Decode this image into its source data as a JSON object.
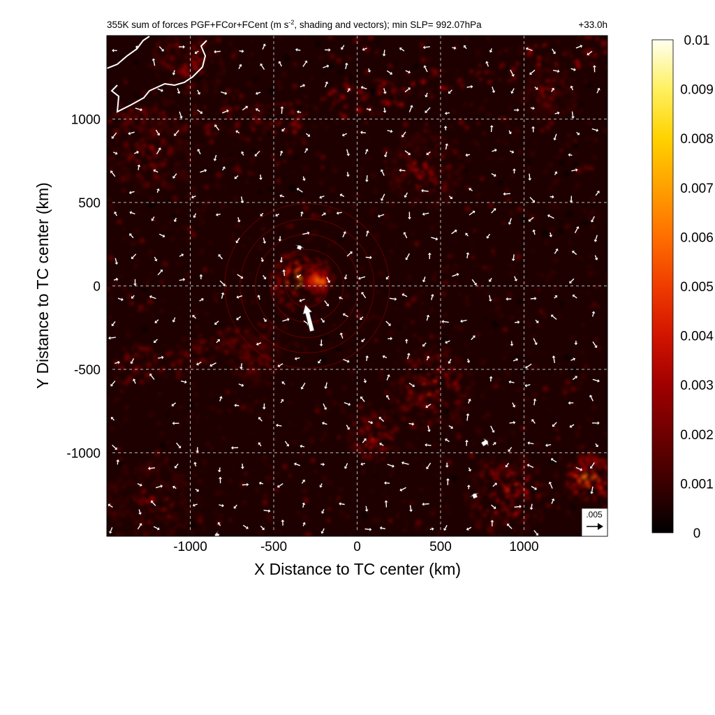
{
  "chart_data": {
    "type": "heatmap",
    "title_main": "355K sum of forces PGF+FCor+FCent (m s",
    "title_exp": "-2",
    "title_rest": ", shading and vectors); min SLP= 992.07hPa",
    "time_label": "+33.0h",
    "xlabel": "X Distance to TC center (km)",
    "ylabel": "Y Distance to TC center (km)",
    "xlim": [
      -1500,
      1500
    ],
    "ylim": [
      -1500,
      1500
    ],
    "xticks": [
      -1000,
      -500,
      0,
      500,
      1000
    ],
    "yticks": [
      -1000,
      -500,
      0,
      500,
      1000
    ],
    "grid": true,
    "colorbar": {
      "range": [
        0,
        0.01
      ],
      "ticks": [
        "0",
        "0.001",
        "0.002",
        "0.003",
        "0.004",
        "0.005",
        "0.006",
        "0.007",
        "0.008",
        "0.009",
        "0.01"
      ],
      "colors": [
        "#000000",
        "#3a0000",
        "#6e0000",
        "#a00000",
        "#d21400",
        "#f03c00",
        "#ff6e00",
        "#ffa000",
        "#ffd200",
        "#fff060",
        "#fffff0"
      ]
    },
    "reference_vector": {
      "label": ".005",
      "value": 0.005
    },
    "large_vectors": [
      {
        "x": -270,
        "y": -270,
        "u": -0.0022,
        "v": 0.0085
      },
      {
        "x": 750,
        "y": -950,
        "u": 0.0018,
        "v": 0.0011
      },
      {
        "x": 710,
        "y": -1270,
        "u": -0.0006,
        "v": 0.0014
      },
      {
        "x": -830,
        "y": -1500,
        "u": -0.0012,
        "v": 0.0006
      },
      {
        "x": -350,
        "y": 220,
        "u": 0.0005,
        "v": 0.0012
      }
    ],
    "hotspots": [
      {
        "x": -350,
        "y": 30,
        "r": 180,
        "value": 0.0055
      },
      {
        "x": -230,
        "y": 40,
        "r": 90,
        "value": 0.006
      },
      {
        "x": 450,
        "y": -620,
        "r": 260,
        "value": 0.0035
      },
      {
        "x": 900,
        "y": -1250,
        "r": 260,
        "value": 0.004
      },
      {
        "x": 1400,
        "y": -1150,
        "r": 150,
        "value": 0.006
      },
      {
        "x": 100,
        "y": -900,
        "r": 160,
        "value": 0.004
      },
      {
        "x": 400,
        "y": 700,
        "r": 230,
        "value": 0.003
      },
      {
        "x": -1250,
        "y": 800,
        "r": 260,
        "value": 0.0025
      },
      {
        "x": -1250,
        "y": -1300,
        "r": 260,
        "value": 0.0025
      },
      {
        "x": 1150,
        "y": 1150,
        "r": 170,
        "value": 0.0025
      },
      {
        "x": -1000,
        "y": 1350,
        "r": 220,
        "value": 0.003
      },
      {
        "x": -600,
        "y": -450,
        "r": 160,
        "value": 0.0025
      }
    ],
    "bands": [
      {
        "x1": -500,
        "y1": 1000,
        "x2": 1500,
        "y2": 1450,
        "value": 0.0025
      },
      {
        "x1": -1500,
        "y1": 1000,
        "x2": -500,
        "y2": 1000,
        "value": 0.002
      },
      {
        "x1": -1500,
        "y1": -500,
        "x2": -500,
        "y2": -300,
        "value": 0.0018
      }
    ]
  }
}
